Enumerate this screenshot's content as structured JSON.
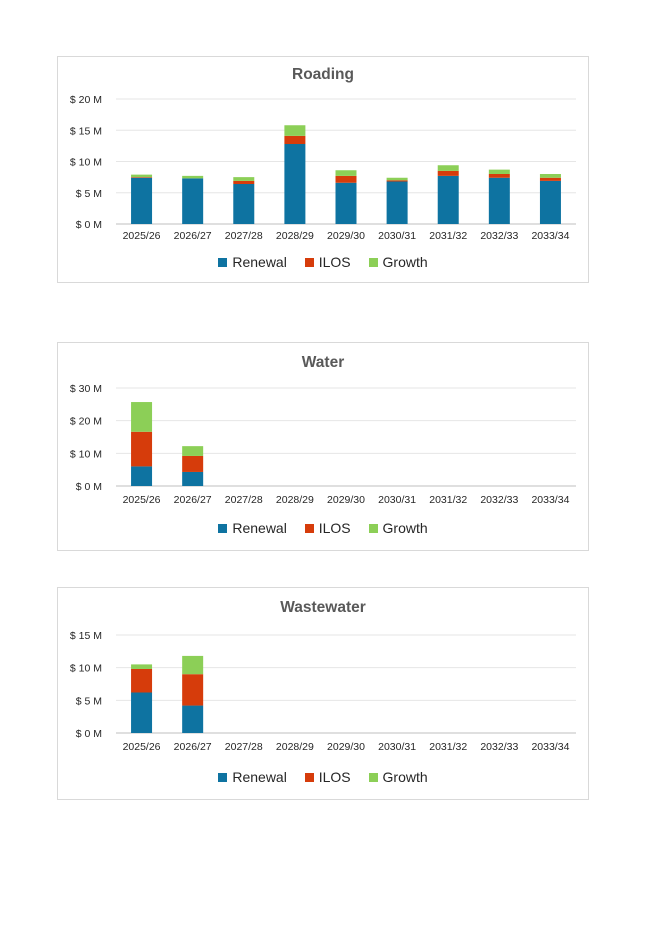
{
  "colors": {
    "renewal": "#0e73a1",
    "ilos": "#d63c0b",
    "growth": "#8ccf57",
    "grid": "#e6e6e6"
  },
  "chart_data": [
    {
      "type": "bar",
      "stacked": true,
      "title": "Roading",
      "categories": [
        "2025/26",
        "2026/27",
        "2027/28",
        "2028/29",
        "2029/30",
        "2030/31",
        "2031/32",
        "2032/33",
        "2033/34"
      ],
      "yticks": [
        "$ 0 M",
        "$ 5 M",
        "$ 10 M",
        "$ 15 M",
        "$ 20 M"
      ],
      "ylim": [
        0,
        20
      ],
      "grid": true,
      "legend_position": "bottom",
      "series": [
        {
          "name": "Renewal",
          "color": "#0e73a1",
          "values": [
            7.4,
            7.3,
            6.4,
            12.8,
            6.6,
            6.8,
            7.7,
            7.4,
            6.9
          ]
        },
        {
          "name": "ILOS",
          "color": "#d63c0b",
          "values": [
            0.1,
            0.0,
            0.5,
            1.3,
            1.1,
            0.2,
            0.8,
            0.6,
            0.5
          ]
        },
        {
          "name": "Growth",
          "color": "#8ccf57",
          "values": [
            0.4,
            0.4,
            0.6,
            1.7,
            0.9,
            0.4,
            0.9,
            0.7,
            0.6
          ]
        }
      ]
    },
    {
      "type": "bar",
      "stacked": true,
      "title": "Water",
      "categories": [
        "2025/26",
        "2026/27",
        "2027/28",
        "2028/29",
        "2029/30",
        "2030/31",
        "2031/32",
        "2032/33",
        "2033/34"
      ],
      "yticks": [
        "$ 0 M",
        "$ 10 M",
        "$ 20 M",
        "$ 30 M"
      ],
      "ylim": [
        0,
        30
      ],
      "grid": true,
      "legend_position": "bottom",
      "series": [
        {
          "name": "Renewal",
          "color": "#0e73a1",
          "values": [
            6.0,
            4.3,
            0,
            0,
            0,
            0,
            0,
            0,
            0
          ]
        },
        {
          "name": "ILOS",
          "color": "#d63c0b",
          "values": [
            10.6,
            4.9,
            0,
            0,
            0,
            0,
            0,
            0,
            0
          ]
        },
        {
          "name": "Growth",
          "color": "#8ccf57",
          "values": [
            9.1,
            3.0,
            0,
            0,
            0,
            0,
            0,
            0,
            0
          ]
        }
      ]
    },
    {
      "type": "bar",
      "stacked": true,
      "title": "Wastewater",
      "categories": [
        "2025/26",
        "2026/27",
        "2027/28",
        "2028/29",
        "2029/30",
        "2030/31",
        "2031/32",
        "2032/33",
        "2033/34"
      ],
      "yticks": [
        "$ 0 M",
        "$ 5 M",
        "$ 10 M",
        "$ 15 M"
      ],
      "ylim": [
        0,
        15
      ],
      "grid": true,
      "legend_position": "bottom",
      "series": [
        {
          "name": "Renewal",
          "color": "#0e73a1",
          "values": [
            6.2,
            4.2,
            0,
            0,
            0,
            0,
            0,
            0,
            0
          ]
        },
        {
          "name": "ILOS",
          "color": "#d63c0b",
          "values": [
            3.6,
            4.8,
            0,
            0,
            0,
            0,
            0,
            0,
            0
          ]
        },
        {
          "name": "Growth",
          "color": "#8ccf57",
          "values": [
            0.7,
            2.8,
            0,
            0,
            0,
            0,
            0,
            0,
            0
          ]
        }
      ]
    }
  ]
}
